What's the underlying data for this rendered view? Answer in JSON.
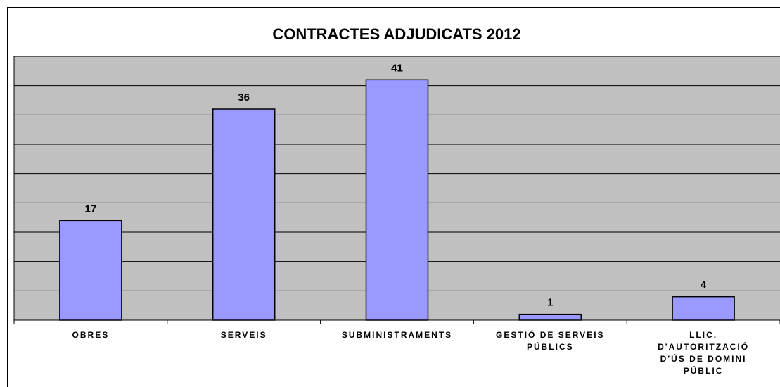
{
  "chart_data": {
    "type": "bar",
    "title": "CONTRACTES ADJUDICATS 2012",
    "categories": [
      "OBRES",
      "SERVEIS",
      "SUBMINISTRAMENTS",
      "GESTIÓ DE SERVEIS PÚBLICS",
      "LLIC. D'AUTORITZACIÓ D'ÚS DE DOMINI PÚBLIC"
    ],
    "values": [
      17,
      36,
      41,
      1,
      4
    ],
    "color": "#9999ff",
    "ylim": [
      0,
      45
    ],
    "yticks": [
      0,
      5,
      10,
      15,
      20,
      25,
      30,
      35,
      40,
      45
    ],
    "grid": true
  }
}
